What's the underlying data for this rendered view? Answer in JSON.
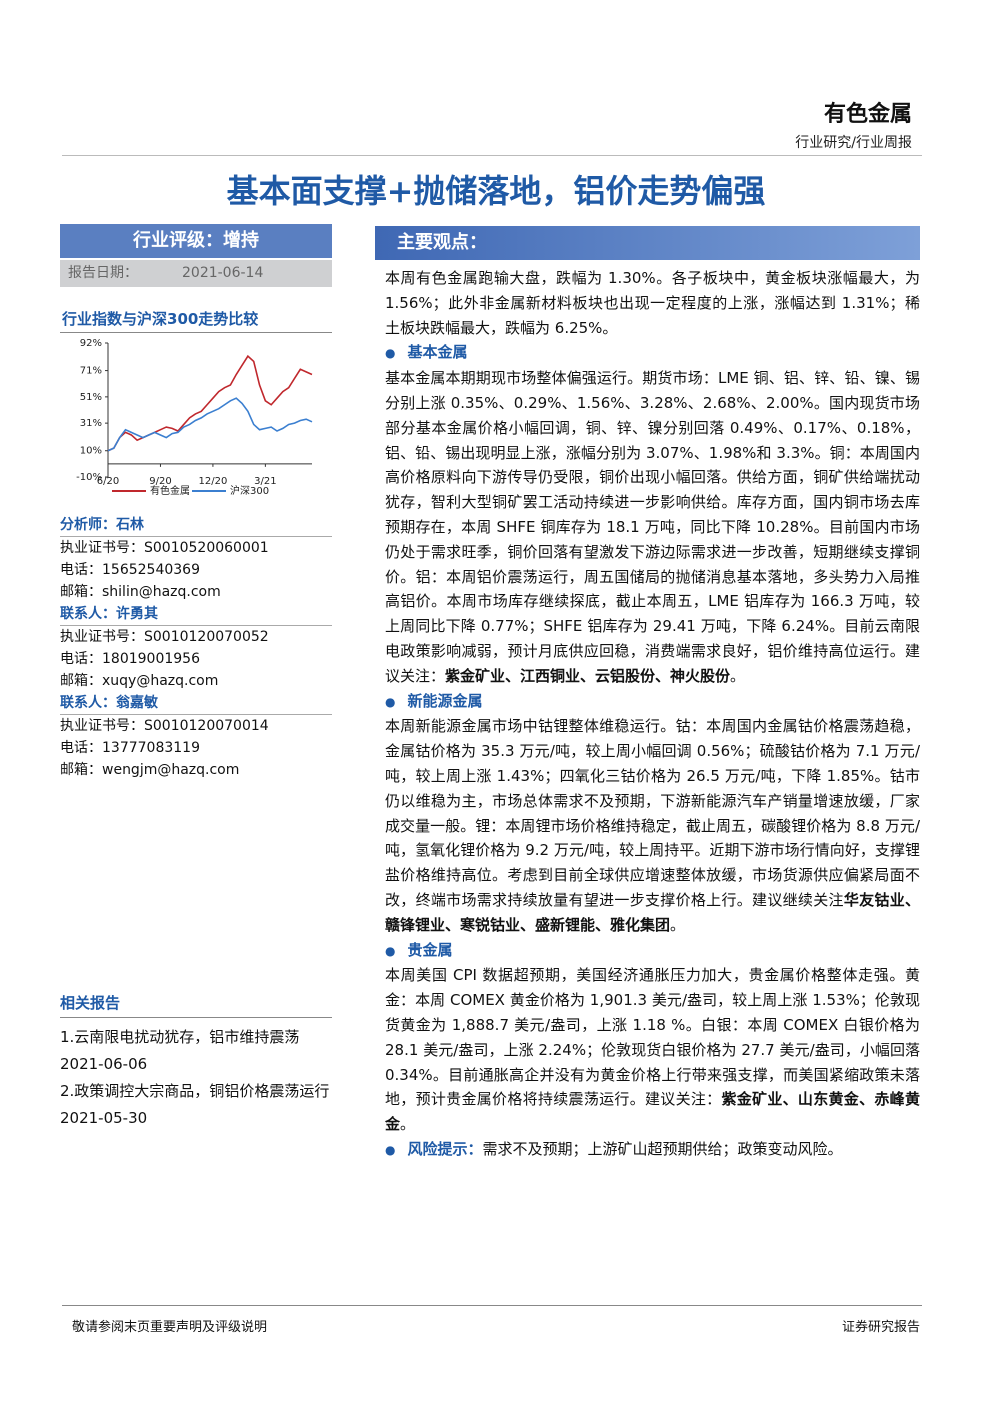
{
  "header": {
    "category": "有色金属",
    "subtitle": "行业研究/行业周报"
  },
  "title": "基本面支撑+抛储落地，铝价走势偏强",
  "rating": "行业评级：增持",
  "report_date": {
    "label": "报告日期：",
    "value": "2021-06-14"
  },
  "chart_title": "行业指数与沪深300走势比较",
  "chart": {
    "type": "line",
    "categories": [
      "6/20",
      null,
      null,
      null,
      null,
      null,
      null,
      null,
      null,
      "9/20",
      null,
      null,
      null,
      null,
      null,
      null,
      null,
      null,
      "12/20",
      null,
      null,
      null,
      null,
      null,
      null,
      null,
      null,
      "3/21",
      null,
      null,
      null,
      null,
      null,
      null,
      null,
      null
    ],
    "series": [
      {
        "name": "有色金属",
        "color": "#c0282d",
        "values": [
          10,
          12,
          20,
          24,
          22,
          18,
          20,
          22,
          24,
          26,
          28,
          27,
          25,
          30,
          35,
          38,
          40,
          45,
          50,
          55,
          58,
          60,
          68,
          75,
          82,
          78,
          60,
          48,
          45,
          50,
          55,
          58,
          65,
          72,
          70,
          68
        ]
      },
      {
        "name": "沪深300",
        "color": "#3b7fd0",
        "values": [
          10,
          12,
          20,
          26,
          24,
          22,
          20,
          22,
          24,
          22,
          20,
          23,
          24,
          28,
          30,
          33,
          35,
          38,
          40,
          42,
          45,
          48,
          50,
          46,
          40,
          30,
          26,
          27,
          28,
          25,
          27,
          30,
          31,
          33,
          34,
          32
        ]
      }
    ],
    "ylim": [
      -10,
      92
    ],
    "yticks": [
      {
        "value": 92,
        "label": "92%"
      },
      {
        "value": 71,
        "label": "71%"
      },
      {
        "value": 51,
        "label": "51%"
      },
      {
        "value": 31,
        "label": "31%"
      },
      {
        "value": 10,
        "label": "10%"
      },
      {
        "value": -10,
        "label": "-10%"
      }
    ]
  },
  "contacts": [
    {
      "heading": "分析师：石林",
      "lines": [
        "执业证书号：S0010520060001",
        "电话：15652540369",
        "邮箱：shilin@hazq.com"
      ]
    },
    {
      "heading": "联系人：许勇其",
      "lines": [
        "执业证书号：S0010120070052",
        "电话：18019001956",
        "邮箱：xuqy@hazq.com"
      ]
    },
    {
      "heading": "联系人：翁嘉敏",
      "lines": [
        "执业证书号：S0010120070014",
        "电话：13777083119",
        "邮箱：wengjm@hazq.com"
      ]
    }
  ],
  "related": {
    "heading": "相关报告",
    "items": [
      "1.云南限电扰动犹存，铝市维持震荡 2021-06-06",
      "2.政策调控大宗商品，铜铝价格震荡运行 2021-05-30"
    ]
  },
  "main": {
    "heading": "主要观点：",
    "intro": [
      "本周有色金属跑输大盘，跌幅为 1.30%。各子板块中，黄金板块涨幅最大，为 1.56%；此外非金属新材料板块也出现一定程度的上涨，涨幅达到 1.31%；稀土板块跌幅最大，跌幅为 6.25%。"
    ],
    "sections": [
      {
        "heading": "基本金属",
        "runs": [
          "基本金属本期期现市场整体偏强运行。期货市场：LME 铜、铝、锌、铅、镍、锡分别上涨 0.35%、0.29%、1.56%、3.28%、2.68%、2.00%。国内现货市场部分基本金属价格小幅回调，铜、锌、镍分别回落 0.49%、0.17%、0.18%，铝、铅、锡出现明显上涨，涨幅分别为 3.07%、1.98%和 3.3%。铜：本周国内高价格原料向下游传导仍受限，铜价出现小幅回落。供给方面，铜矿供给端扰动犹存，智利大型铜矿罢工活动持续进一步影响供给。库存方面，国内铜市场去库预期存在，本周 SHFE 铜库存为 18.1 万吨，同比下降 10.28%。目前国内市场仍处于需求旺季，铜价回落有望激发下游边际需求进一步改善，短期继续支撑铜价。铝：本周铝价震荡运行，周五国储局的抛储消息基本落地，多头势力入局推高铝价。本周市场库存继续探底，截止本周五，LME 铝库存为 166.3 万吨，较上周同比下降 0.77%；SHFE 铝库存为 29.41 万吨，下降 6.24%。目前云南限电政策影响减弱，预计月底供应回稳，消费端需求良好，铝价维持高位运行。建议关注：",
          {
            "text": "紫金矿业、江西铜业、云铝股份、神火股份",
            "bold": true
          },
          "。"
        ]
      },
      {
        "heading": "新能源金属",
        "runs": [
          "本周新能源金属市场中钴锂整体维稳运行。钴：本周国内金属钴价格震荡趋稳，金属钴价格为 35.3 万元/吨，较上周小幅回调 0.56%；硫酸钴价格为 7.1 万元/吨，较上周上涨 1.43%；四氧化三钴价格为 26.5 万元/吨，下降 1.85%。钴市仍以维稳为主，市场总体需求不及预期，下游新能源汽车产销量增速放缓，厂家成交量一般。锂：本周锂市场价格维持稳定，截止周五，碳酸锂价格为 8.8 万元/吨，氢氧化锂价格为 9.2 万元/吨，较上周持平。近期下游市场行情向好，支撑锂盐价格维持高位。考虑到目前全球供应增速整体放缓，市场货源供应偏紧局面不改，终端市场需求持续放量有望进一步支撑价格上行。建议继续关注",
          {
            "text": "华友钴业、赣锋锂业、寒锐钴业、盛新锂能、雅化集团",
            "bold": true
          },
          "。"
        ]
      },
      {
        "heading": "贵金属",
        "runs": [
          "本周美国 CPI 数据超预期，美国经济通胀压力加大，贵金属价格整体走强。黄金：本周 COMEX 黄金价格为 1,901.3 美元/盎司，较上周上涨 1.53%；伦敦现货黄金为 1,888.7 美元/盎司，上涨 1.18 %。白银：本周 COMEX 白银价格为 28.1 美元/盎司，上涨 2.24%；伦敦现货白银价格为 27.7 美元/盎司，小幅回落 0.34%。目前通胀高企并没有为黄金价格上行带来强支撑，而美国紧缩政策未落地，预计贵金属价格将持续震荡运行。建议关注：",
          {
            "text": "紫金矿业、山东黄金、赤峰黄金",
            "bold": true
          },
          "。"
        ]
      }
    ],
    "risk": {
      "label": "风险提示：",
      "text": "需求不及预期；上游矿山超预期供给；政策变动风险。"
    }
  },
  "footer": {
    "left": "敬请参阅末页重要声明及评级说明",
    "right": "证券研究报告"
  }
}
